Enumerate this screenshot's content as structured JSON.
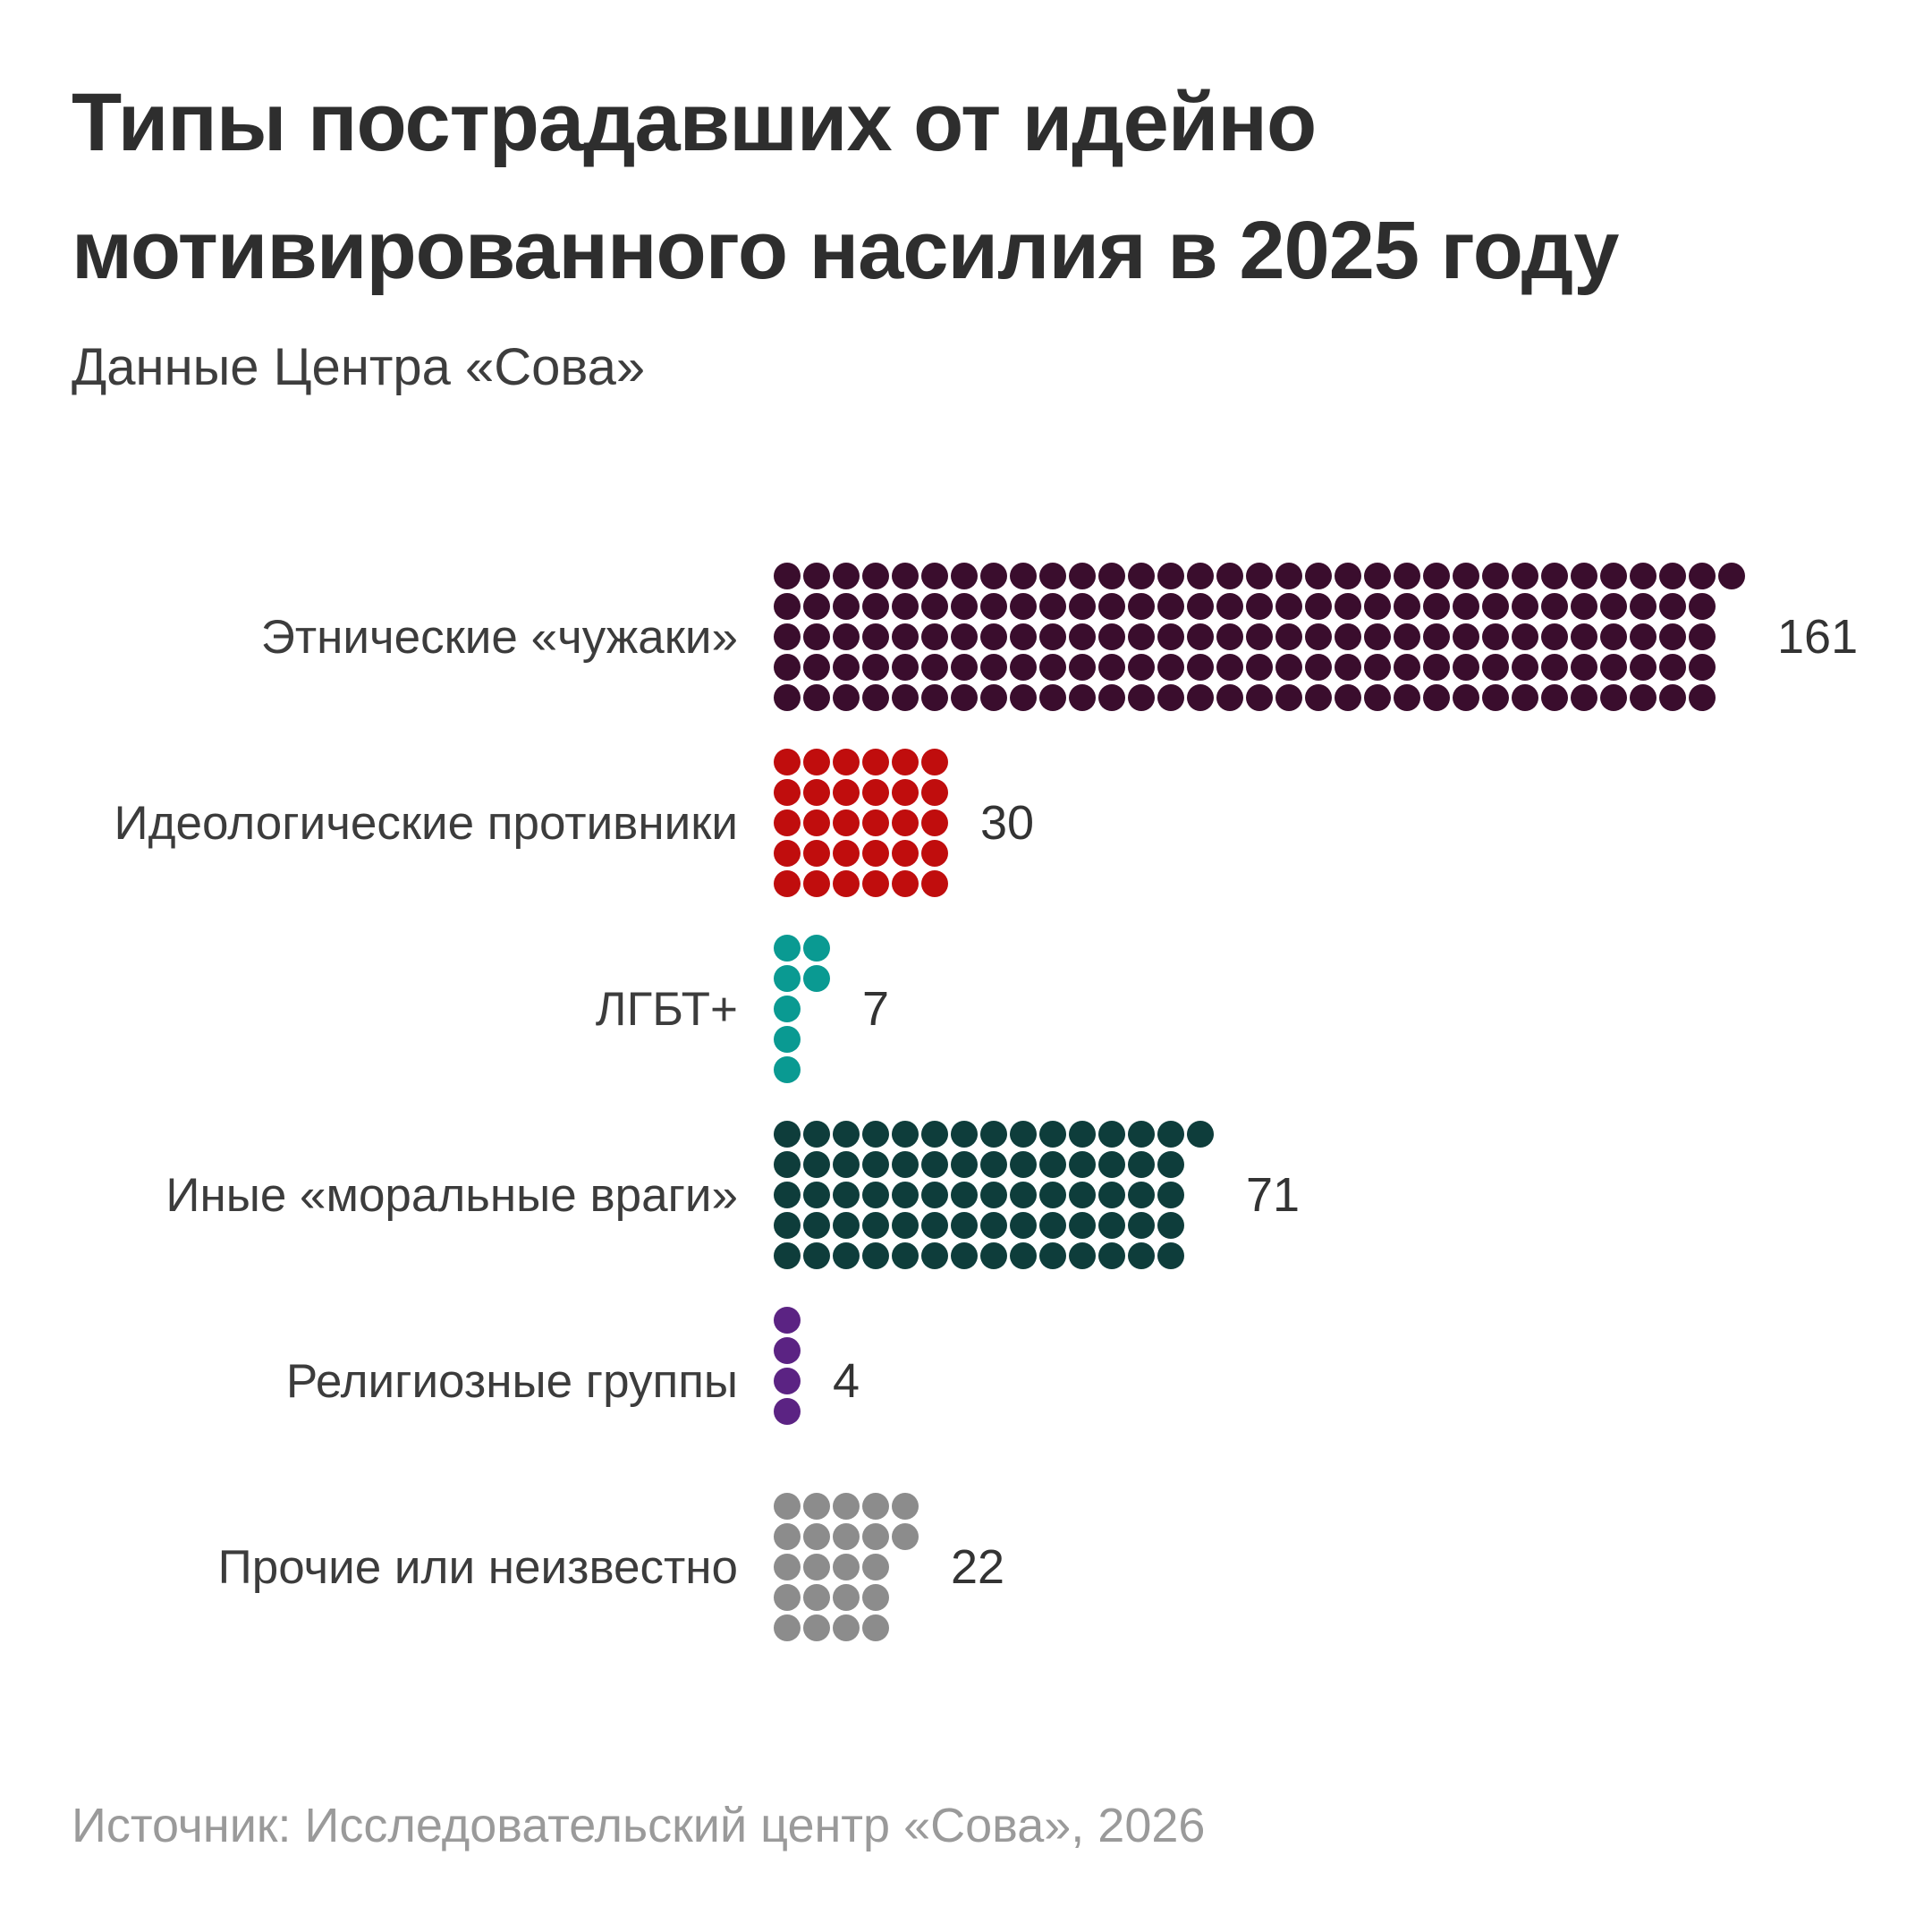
{
  "header": {
    "title_line1": "Типы пострадавших от идейно",
    "title_line2": "мотивированного насилия в 2025 году",
    "subtitle": "Данные Центра «Сова»"
  },
  "footer": {
    "source": "Источник: Исследовательский центр «Сова», 2026"
  },
  "chart_data": {
    "type": "pictogram",
    "description": "Unit dot chart: 1 dot = 1 victim; dots fill top-to-bottom in columns of 5 per category",
    "dot_value": 1,
    "rows_per_band": 5,
    "legend_position": "none",
    "grid": false,
    "categories": [
      "Этнические «чужаки»",
      "Идеологические противники",
      "ЛГБТ+",
      "Иные «моральные враги»",
      "Религиозные группы",
      "Прочие или неизвестно"
    ],
    "values": [
      161,
      30,
      7,
      71,
      4,
      22
    ],
    "value_labels": [
      "161",
      "30",
      "7",
      "71",
      "4",
      "22"
    ],
    "colors": [
      "#3a0d2d",
      "#c00d0d",
      "#0a9a92",
      "#0e3d3b",
      "#5b2383",
      "#8c8c8c"
    ]
  },
  "text_colors": {
    "title": "#2e2e2e",
    "subtitle": "#3d3d3d",
    "category_label": "#3c3c3c",
    "value_label": "#333333",
    "source": "#9a9a9a"
  }
}
